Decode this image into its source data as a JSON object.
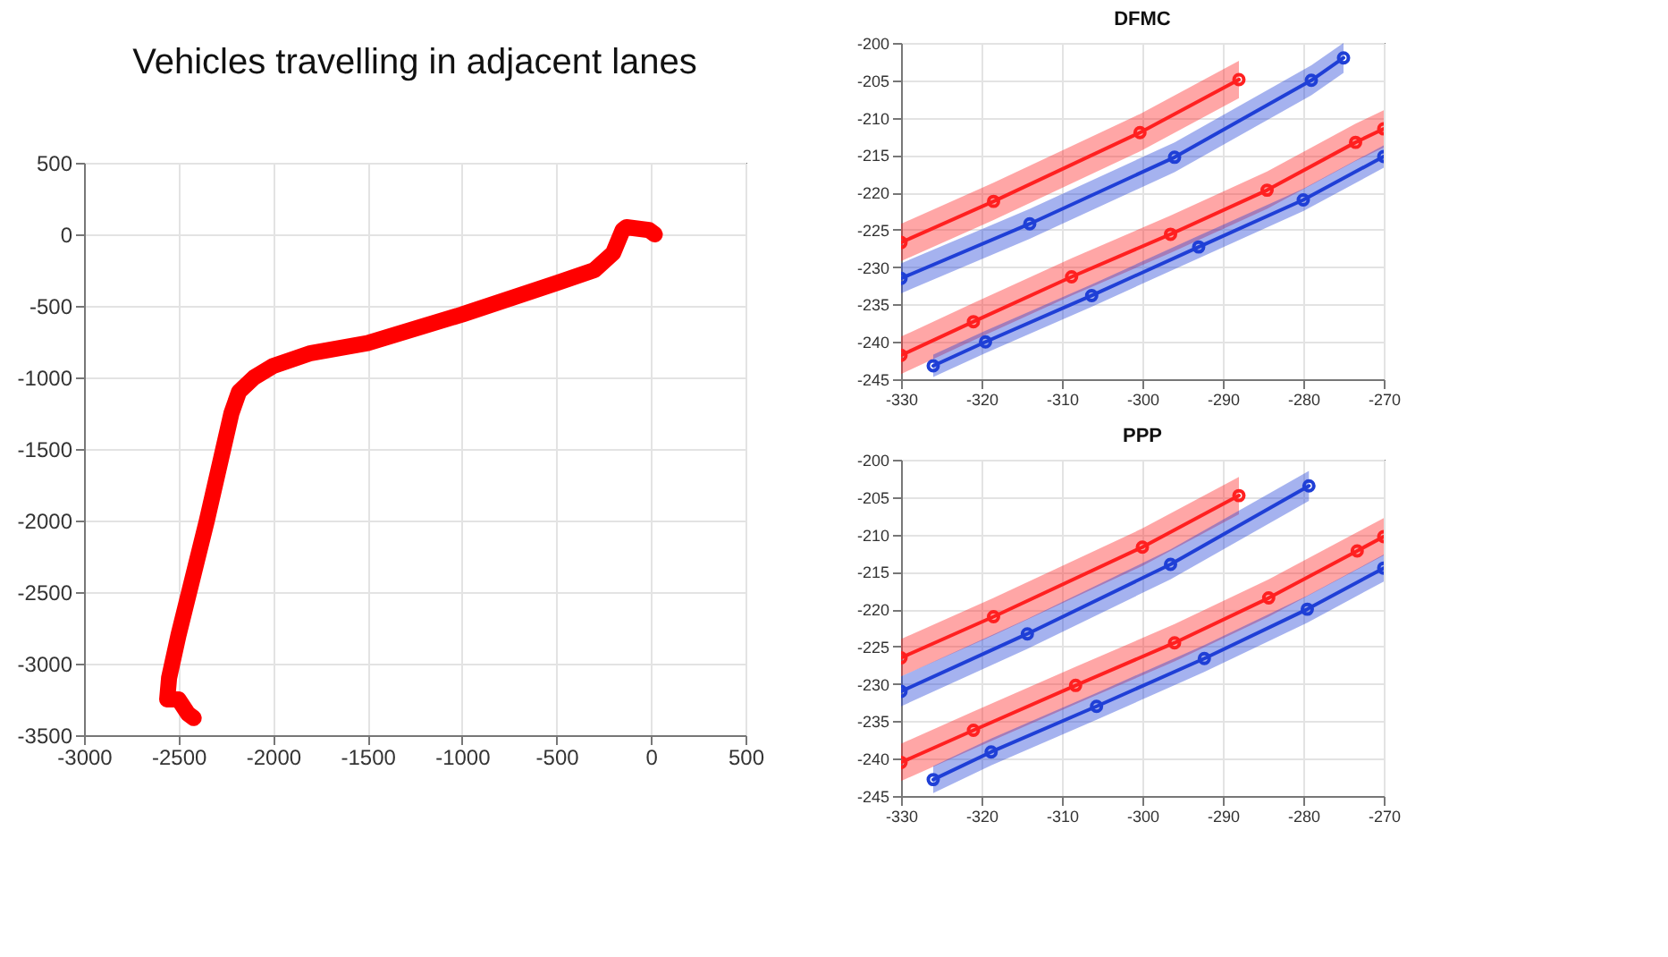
{
  "chart_data": [
    {
      "type": "line",
      "title": "Vehicles travelling in adjacent lanes",
      "xlim": [
        -3000,
        500
      ],
      "ylim": [
        -3500,
        500
      ],
      "xticks": [
        -3000,
        -2500,
        -2000,
        -1500,
        -1000,
        -500,
        0,
        500
      ],
      "yticks": [
        -3500,
        -3000,
        -2500,
        -2000,
        -1500,
        -1000,
        -500,
        0,
        500
      ],
      "grid": true,
      "series": [
        {
          "color": "#ff0000",
          "x": [
            20,
            -10,
            -130,
            -150,
            -200,
            -300,
            -500,
            -1000,
            -1200,
            -1500,
            -1800,
            -2000,
            -2100,
            -2180,
            -2220,
            -2350,
            -2500,
            -2550,
            -2560,
            -2500,
            -2450,
            -2420
          ],
          "values": [
            0,
            30,
            50,
            30,
            -130,
            -250,
            -340,
            -560,
            -640,
            -760,
            -830,
            -920,
            -1000,
            -1100,
            -1250,
            -2000,
            -2800,
            -3100,
            -3250,
            -3250,
            -3350,
            -3380
          ]
        }
      ]
    },
    {
      "type": "line",
      "title": "DFMC",
      "xlim": [
        -330,
        -270
      ],
      "ylim": [
        -245,
        -200
      ],
      "xticks": [
        -330,
        -320,
        -310,
        -300,
        -290,
        -280,
        -270
      ],
      "yticks": [
        -245,
        -240,
        -235,
        -230,
        -225,
        -220,
        -215,
        -210,
        -205,
        -200
      ],
      "grid": true,
      "marker": "circle",
      "series": [
        {
          "color": "#ff2020",
          "x": [
            -330,
            -318.5,
            -300.3,
            -288
          ],
          "values": [
            -226.7,
            -221.2,
            -212,
            -204.9
          ],
          "lower": [
            -229.2,
            -223.7,
            -214.5,
            -207.4
          ],
          "upper": [
            -224.2,
            -218.7,
            -209.5,
            -202.4
          ]
        },
        {
          "color": "#1f3fd6",
          "x": [
            -330,
            -314,
            -296,
            -279,
            -275
          ],
          "values": [
            -231.5,
            -224.2,
            -215.3,
            -205,
            -202
          ],
          "lower": [
            -233.5,
            -226.2,
            -217.3,
            -207,
            -204
          ],
          "upper": [
            -229.5,
            -222.2,
            -213.3,
            -203,
            -200
          ]
        },
        {
          "color": "#ff2020",
          "x": [
            -330,
            -321,
            -308.8,
            -296.5,
            -284.5,
            -273.5,
            -270
          ],
          "values": [
            -241.8,
            -237.3,
            -231.3,
            -225.6,
            -219.7,
            -213.3,
            -211.5
          ],
          "lower": [
            -244.3,
            -239.8,
            -233.8,
            -228.1,
            -222.2,
            -215.8,
            -214
          ],
          "upper": [
            -239.3,
            -234.8,
            -228.8,
            -223.1,
            -217.2,
            -210.8,
            -209
          ]
        },
        {
          "color": "#1f3fd6",
          "x": [
            -326,
            -319.5,
            -306.3,
            -293,
            -280,
            -270
          ],
          "values": [
            -243.2,
            -240,
            -233.8,
            -227.3,
            -221,
            -215.2
          ],
          "lower": [
            -244.7,
            -241.5,
            -235.3,
            -228.8,
            -222.5,
            -216.7
          ],
          "upper": [
            -241.7,
            -238.5,
            -232.3,
            -225.8,
            -219.5,
            -213.7
          ]
        }
      ]
    },
    {
      "type": "line",
      "title": "PPP",
      "xlim": [
        -330,
        -270
      ],
      "ylim": [
        -245,
        -200
      ],
      "xticks": [
        -330,
        -320,
        -310,
        -300,
        -290,
        -280,
        -270
      ],
      "yticks": [
        -245,
        -240,
        -235,
        -230,
        -225,
        -220,
        -215,
        -210,
        -205,
        -200
      ],
      "grid": true,
      "marker": "circle",
      "series": [
        {
          "color": "#ff2020",
          "x": [
            -330,
            -318.5,
            -300,
            -288
          ],
          "values": [
            -226.5,
            -221,
            -211.7,
            -204.8
          ],
          "lower": [
            -229,
            -223.5,
            -214.2,
            -207.3
          ],
          "upper": [
            -224,
            -218.5,
            -209.2,
            -202.3
          ]
        },
        {
          "color": "#1f3fd6",
          "x": [
            -330,
            -314.3,
            -296.5,
            -279.3
          ],
          "values": [
            -231,
            -223.3,
            -214,
            -203.5
          ],
          "lower": [
            -233,
            -225.3,
            -216,
            -205.5
          ],
          "upper": [
            -229,
            -221.3,
            -212,
            -201.5
          ]
        },
        {
          "color": "#ff2020",
          "x": [
            -330,
            -321,
            -308.3,
            -296,
            -284.3,
            -273.3,
            -270
          ],
          "values": [
            -240.5,
            -236.2,
            -230.2,
            -224.5,
            -218.5,
            -212.2,
            -210.3
          ],
          "lower": [
            -243,
            -238.7,
            -232.7,
            -227,
            -221,
            -214.7,
            -212.8
          ],
          "upper": [
            -238,
            -233.7,
            -227.7,
            -222,
            -216,
            -209.7,
            -207.8
          ]
        },
        {
          "color": "#1f3fd6",
          "x": [
            -326,
            -318.8,
            -305.7,
            -292.3,
            -279.5,
            -270
          ],
          "values": [
            -242.8,
            -239.1,
            -233,
            -226.6,
            -220,
            -214.5
          ],
          "lower": [
            -244.6,
            -240.9,
            -234.8,
            -228.4,
            -221.8,
            -216.3
          ],
          "upper": [
            -241,
            -237.3,
            -231.2,
            -224.8,
            -218.2,
            -212.7
          ]
        }
      ]
    }
  ]
}
